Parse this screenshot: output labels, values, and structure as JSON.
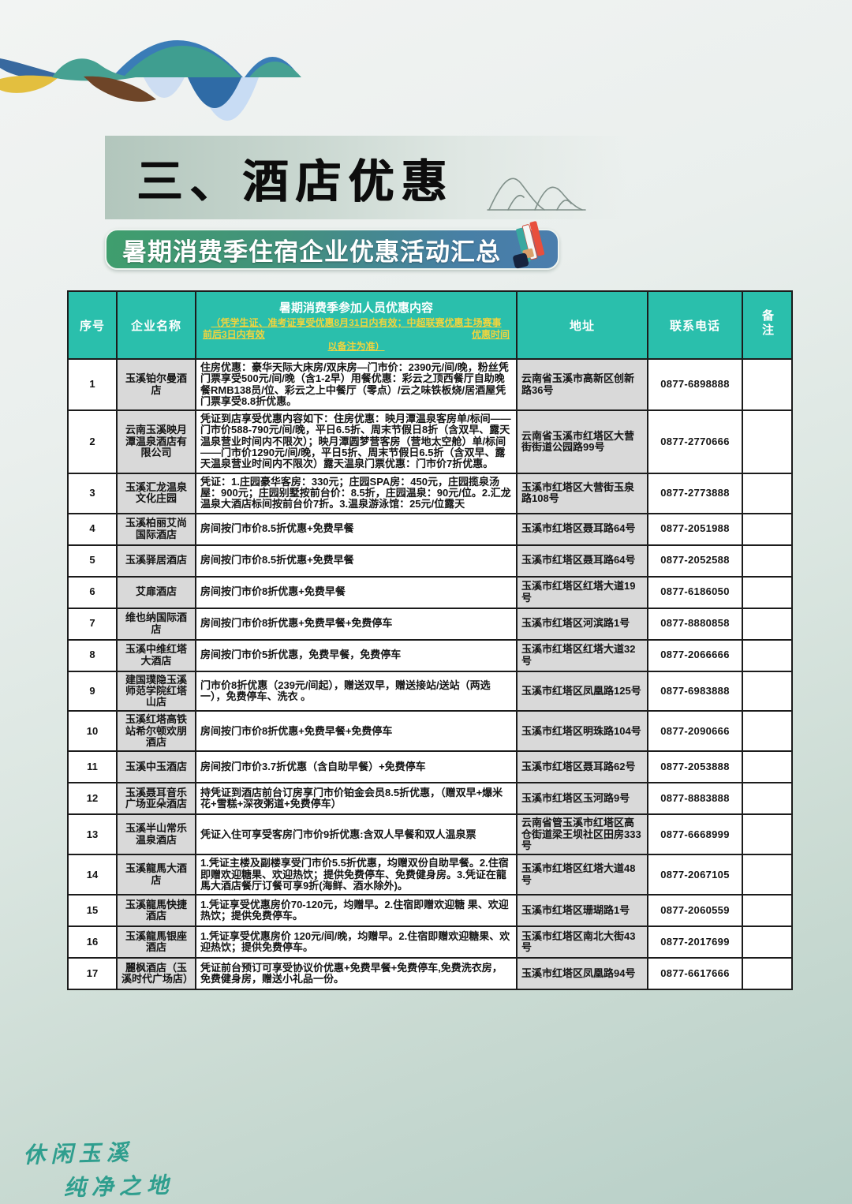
{
  "header": {
    "section_title": "三、酒店优惠",
    "banner_title": "暑期消费季住宿企业优惠活动汇总"
  },
  "table": {
    "columns": {
      "no": "序号",
      "name": "企业名称",
      "content_title": "暑期消费季参加人员优惠内容",
      "content_note_line1": "（凭学生证、准考证享受优惠8月31日内有效；中超联赛优惠主场赛事",
      "content_note_line2_left": "前后3日内有效",
      "content_note_line2_right": "优惠时间",
      "content_note_line3": "以备注为准）",
      "address": "地址",
      "phone": "联系电话",
      "remark": "备注"
    },
    "rows": [
      {
        "no": "1",
        "name": "玉溪铂尔曼酒店",
        "content": "住房优惠：豪华天际大床房/双床房—门市价：2390元/间/晚，粉丝凭门票享受500元/间/晚（含1-2早）用餐优惠：彩云之顶西餐厅自助晚餐RMB138员/位、彩云之上中餐厅（零点）/云之味铁板烧/居酒屋凭门票享受8.8折优惠。",
        "address": "云南省玉溪市高新区创新路36号",
        "phone": "0877-6898888",
        "remark": ""
      },
      {
        "no": "2",
        "name": "云南玉溪映月潭温泉酒店有限公司",
        "content": "凭证到店享受优惠内容如下：住房优惠：映月潭温泉客房单/标间——门市价588-790元/间/晚，平日6.5折、周末节假日8折（含双早、露天温泉营业时间内不限次）；映月潭圆梦营客房（营地太空舱）单/标间——门市价1290元/间/晚，平日5折、周末节假日6.5折（含双早、露天温泉营业时间内不限次）露天温泉门票优惠：门市价7折优惠。",
        "address": "云南省玉溪市红塔区大营街街道公园路99号",
        "phone": "0877-2770666",
        "remark": ""
      },
      {
        "no": "3",
        "name": "玉溪汇龙温泉文化庄园",
        "content": "凭证：1.庄园豪华客房：330元；庄园SPA房：450元，庄园揽泉汤屋：900元；庄园别墅按前台价：8.5折，庄园温泉：90元/位。2.汇龙温泉大酒店标间按前台价7折。3.温泉游泳馆：25元/位露天",
        "address": "玉溪市红塔区大营街玉泉路108号",
        "phone": "0877-2773888",
        "remark": ""
      },
      {
        "no": "4",
        "name": "玉溪柏丽艾尚国际酒店",
        "content": "房间按门市价8.5折优惠+免费早餐",
        "address": "玉溪市红塔区聂耳路64号",
        "phone": "0877-2051988",
        "remark": ""
      },
      {
        "no": "5",
        "name": "玉溪驿居酒店",
        "content": "房间按门市价8.5折优惠+免费早餐",
        "address": "玉溪市红塔区聂耳路64号",
        "phone": "0877-2052588",
        "remark": ""
      },
      {
        "no": "6",
        "name": "艾扉酒店",
        "content": "房间按门市价8折优惠+免费早餐",
        "address": "玉溪市红塔区红塔大道19号",
        "phone": "0877-6186050",
        "remark": ""
      },
      {
        "no": "7",
        "name": "维也纳国际酒店",
        "content": "房间按门市价8折优惠+免费早餐+免费停车",
        "address": "玉溪市红塔区河滨路1号",
        "phone": "0877-8880858",
        "remark": ""
      },
      {
        "no": "8",
        "name": "玉溪中维红塔大酒店",
        "content": "房间按门市价5折优惠，免费早餐，免费停车",
        "address": "玉溪市红塔区红塔大道32号",
        "phone": "0877-2066666",
        "remark": ""
      },
      {
        "no": "9",
        "name": "建国璞隐玉溪师范学院红塔山店",
        "content": "门市价8折优惠（239元/间起），赠送双早，赠送接站/送站（两选一），免费停车、洗衣 。",
        "address": "玉溪市红塔区凤凰路125号",
        "phone": "0877-6983888",
        "remark": ""
      },
      {
        "no": "10",
        "name": "玉溪红塔高铁站希尔顿欢朋酒店",
        "content": "房间按门市价8折优惠+免费早餐+免费停车",
        "address": "玉溪市红塔区明珠路104号",
        "phone": "0877-2090666",
        "remark": ""
      },
      {
        "no": "11",
        "name": "玉溪中玉酒店",
        "content": "房间按门市价3.7折优惠（含自助早餐）+免费停车",
        "address": "玉溪市红塔区聂耳路62号",
        "phone": "0877-2053888",
        "remark": ""
      },
      {
        "no": "12",
        "name": "玉溪聂耳音乐广场亚朵酒店",
        "content": "持凭证到酒店前台订房享门市价铂金会员8.5折优惠，（赠双早+爆米花+雪糕+深夜粥道+免费停车）",
        "address": "玉溪市红塔区玉河路9号",
        "phone": "0877-8883888",
        "remark": ""
      },
      {
        "no": "13",
        "name": "玉溪半山常乐温泉酒店",
        "content": "凭证入住可享受客房门市价9折优惠:含双人早餐和双人温泉票",
        "address": "云南省管玉溪市红塔区高仓街道梁王坝社区田房333号",
        "phone": "0877-6668999",
        "remark": ""
      },
      {
        "no": "14",
        "name": "玉溪龍馬大酒店",
        "content": "1.凭证主楼及副楼享受门市价5.5折优惠，均赠双份自助早餐。2.住宿即赠欢迎糖果、欢迎热饮；提供免费停车、免费健身房。3.凭证在龍馬大酒店餐厅订餐可享9折(海鲜、酒水除外)。",
        "address": "玉溪市红塔区红塔大道48号",
        "phone": "0877-2067105",
        "remark": ""
      },
      {
        "no": "15",
        "name": "玉溪龍馬快捷酒店",
        "content": "1.凭证享受优惠房价70-120元，均赠早。2.住宿即赠欢迎糖 果、欢迎热饮；提供免费停车。",
        "address": "玉溪市红塔区珊瑚路1号",
        "phone": "0877-2060559",
        "remark": ""
      },
      {
        "no": "16",
        "name": "玉溪龍馬银座酒店",
        "content": "1.凭证享受优惠房价 120元/间/晚，均赠早。2.住宿即赠欢迎糖果、欢迎热饮；提供免费停车。",
        "address": "玉溪市红塔区南北大街43号",
        "phone": "0877-2017699",
        "remark": ""
      },
      {
        "no": "17",
        "name": "麗枫酒店（玉溪时代广场店）",
        "content": "凭证前台预订可享受协议价优惠+免费早餐+免费停车,免费洗衣房，免费健身房，赠送小礼品一份。",
        "address": "玉溪市红塔区凤凰路94号",
        "phone": "0877-6617666",
        "remark": ""
      }
    ]
  },
  "footer": {
    "calligraphy_line1": "休闲玉溪",
    "calligraphy_line2": "纯净之地"
  },
  "colors": {
    "table_header_teal": "#2ABFAC",
    "note_yellow": "#F3D43C",
    "banner_gradient_left": "#3F9E6D",
    "banner_gradient_right": "#4A7DAD",
    "cell_gray": "#D9D9D9",
    "calligraphy_teal": "#2F9E8E",
    "page_bottom_green": "#B7CFC7"
  }
}
